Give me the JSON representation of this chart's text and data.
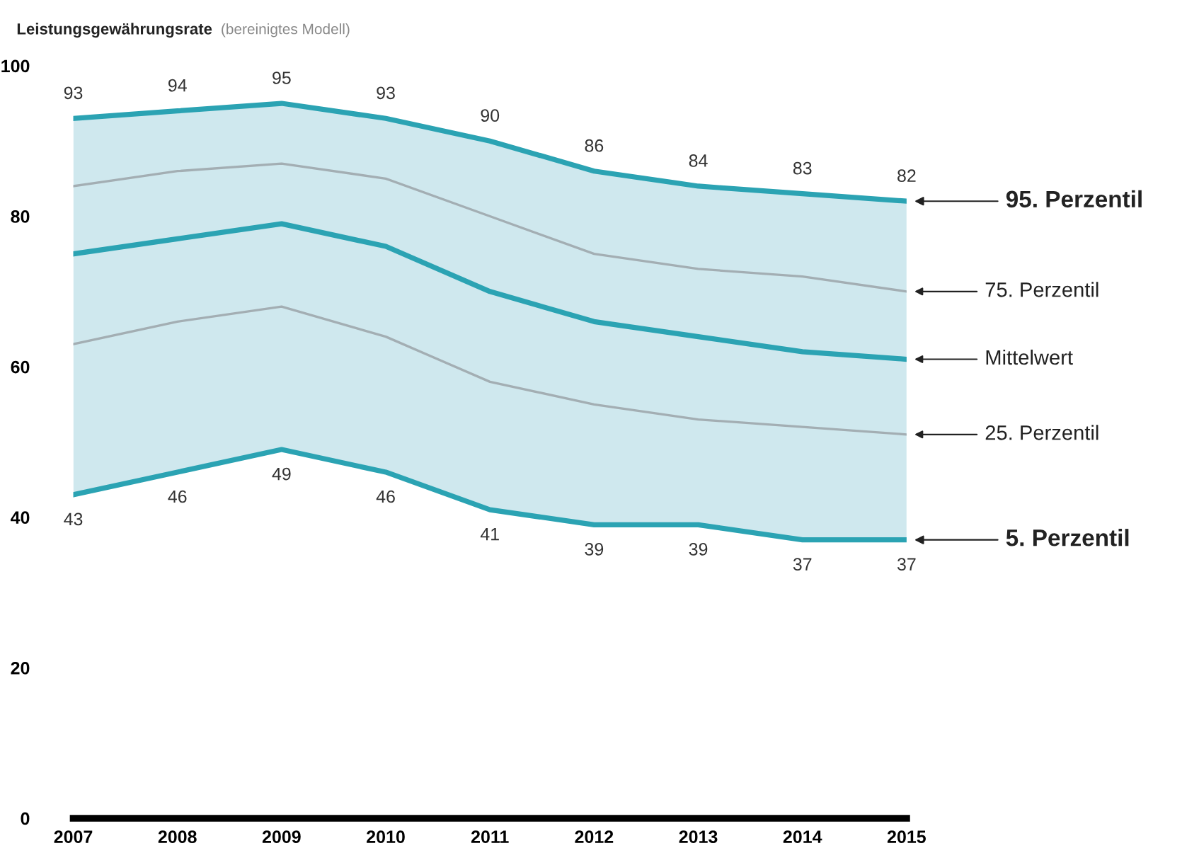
{
  "chart_data": {
    "type": "line",
    "title": "Leistungsgewährungsrate",
    "subtitle": "(bereinigtes Modell)",
    "x": [
      2007,
      2008,
      2009,
      2010,
      2011,
      2012,
      2013,
      2014,
      2015
    ],
    "xlim": [
      2007,
      2015
    ],
    "xticks": [
      2007,
      2008,
      2009,
      2010,
      2011,
      2012,
      2013,
      2014,
      2015
    ],
    "ylim": [
      0,
      100
    ],
    "yticks": [
      0,
      20,
      40,
      60,
      80,
      100
    ],
    "grid": false,
    "legend": false,
    "marker": "none",
    "line_style": "solid",
    "series": [
      {
        "name": "95. Perzentil",
        "color": "#2ba3b3",
        "values": [
          93,
          94,
          95,
          93,
          90,
          86,
          84,
          83,
          82
        ],
        "value_labels": [
          "93",
          "94",
          "95",
          "93",
          "90",
          "86",
          "84",
          "83",
          "82"
        ]
      },
      {
        "name": "75. Perzentil",
        "color": "#a3aeb3",
        "values": [
          84,
          86,
          87,
          85,
          80,
          75,
          73,
          72,
          70
        ]
      },
      {
        "name": "Mittelwert",
        "color": "#2ba3b3",
        "values": [
          75,
          77,
          79,
          76,
          70,
          66,
          64,
          62,
          61
        ],
        "lower": [
          43,
          46,
          49,
          46,
          41,
          39,
          39,
          37,
          37
        ],
        "upper": [
          93,
          94,
          95,
          93,
          90,
          86,
          84,
          83,
          82
        ]
      },
      {
        "name": "25. Perzentil",
        "color": "#a3aeb3",
        "values": [
          63,
          66,
          68,
          64,
          58,
          55,
          53,
          52,
          51
        ]
      },
      {
        "name": "5. Perzentil",
        "color": "#2ba3b3",
        "values": [
          43,
          46,
          49,
          46,
          41,
          39,
          39,
          37,
          37
        ],
        "value_labels": [
          "43",
          "46",
          "49",
          "46",
          "41",
          "39",
          "39",
          "37",
          "37"
        ]
      }
    ]
  }
}
